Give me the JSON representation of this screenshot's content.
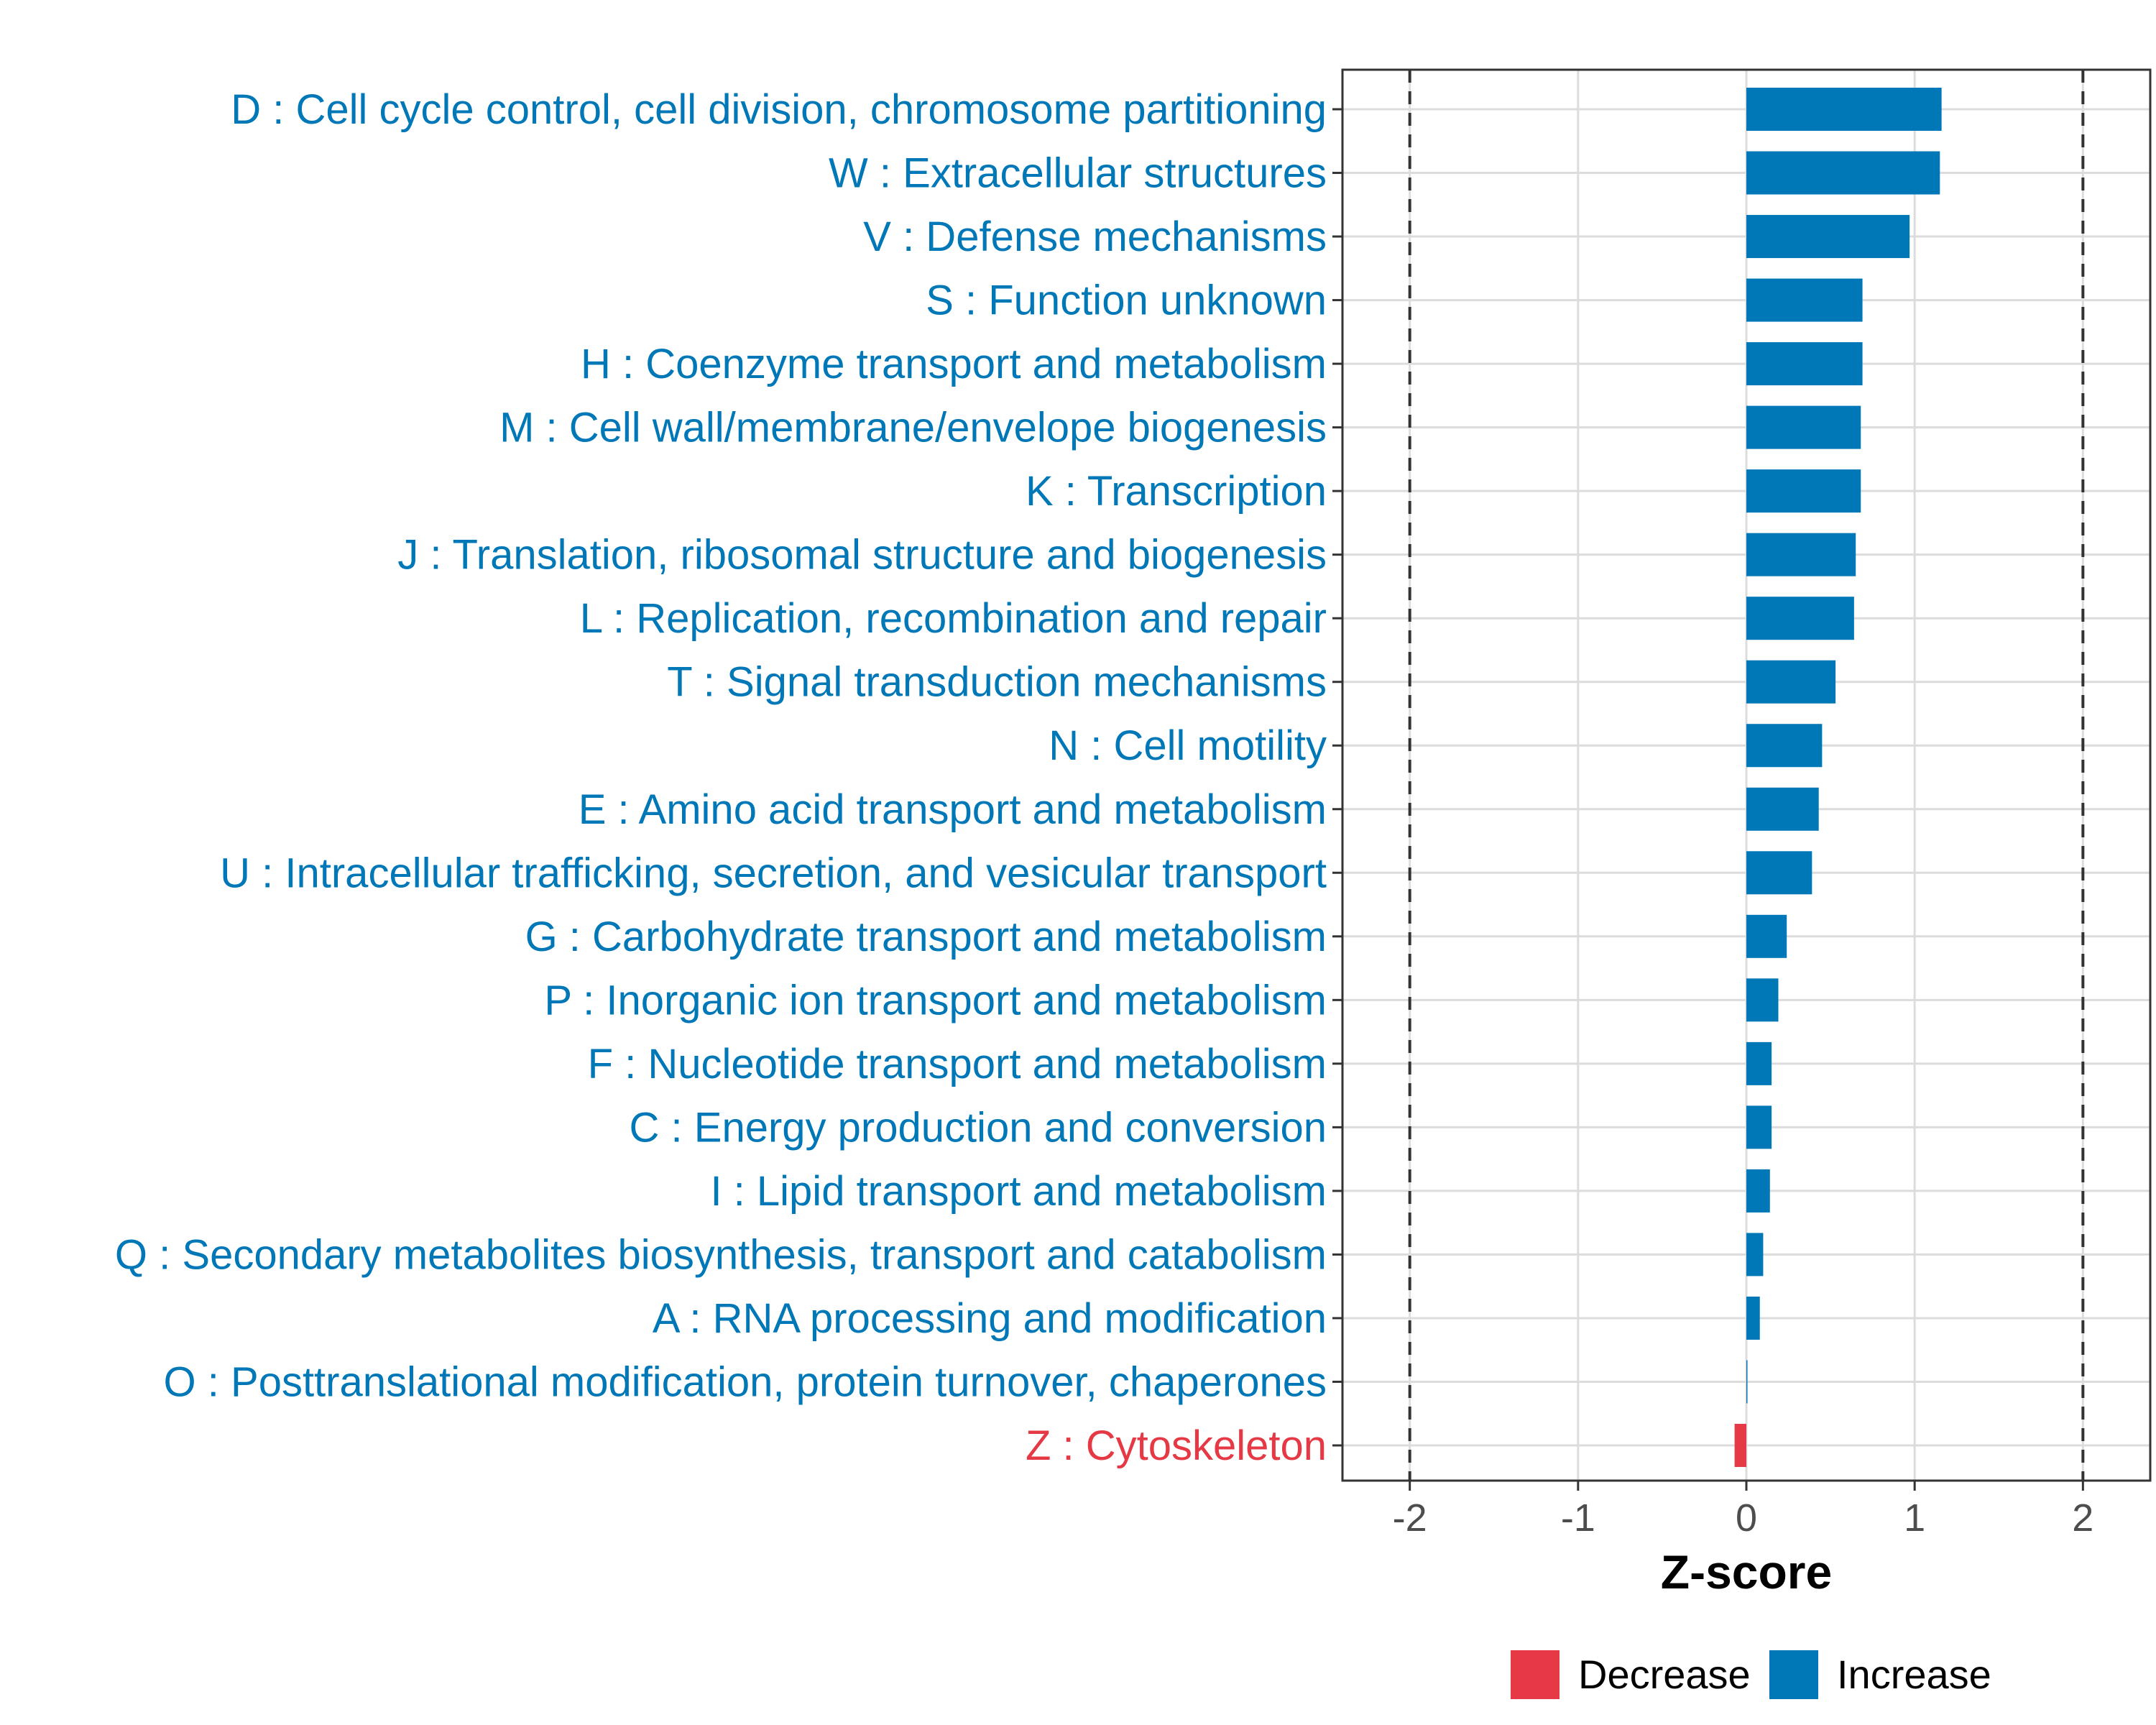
{
  "chart_data": {
    "type": "bar",
    "orientation": "horizontal",
    "xlabel": "Z-score",
    "xlim": [
      -2.4,
      2.4
    ],
    "xticks": [
      -2,
      -1,
      0,
      1,
      2
    ],
    "xtick_labels": [
      "-2",
      "-1",
      "0",
      "1",
      "2"
    ],
    "reference_lines": [
      -2,
      2
    ],
    "grid": true,
    "legend_position": "bottom",
    "legend": [
      {
        "label": "Decrease",
        "color": "#E63946"
      },
      {
        "label": "Increase",
        "color": "#0077B6"
      }
    ],
    "categories": [
      "D : Cell cycle control, cell division, chromosome partitioning",
      "W : Extracellular structures",
      "V : Defense mechanisms",
      "S : Function unknown",
      "H : Coenzyme transport and metabolism",
      "M : Cell wall/membrane/envelope biogenesis",
      "K : Transcription",
      "J : Translation, ribosomal structure and biogenesis",
      "L : Replication, recombination and repair",
      "T : Signal transduction mechanisms",
      "N : Cell motility",
      "E : Amino acid transport and metabolism",
      "U : Intracellular trafficking, secretion, and vesicular transport",
      "G : Carbohydrate transport and metabolism",
      "P : Inorganic ion transport and metabolism",
      "F : Nucleotide transport and metabolism",
      "C : Energy production and conversion",
      "I : Lipid transport and metabolism",
      "Q : Secondary metabolites biosynthesis, transport and catabolism",
      "A : RNA processing and modification",
      "O : Posttranslational modification, protein turnover, chaperones",
      "Z : Cytoskeleton"
    ],
    "values": [
      1.16,
      1.15,
      0.97,
      0.69,
      0.69,
      0.68,
      0.68,
      0.65,
      0.64,
      0.53,
      0.45,
      0.43,
      0.39,
      0.24,
      0.19,
      0.15,
      0.15,
      0.14,
      0.1,
      0.08,
      0.005,
      -0.07
    ],
    "directions": [
      "Increase",
      "Increase",
      "Increase",
      "Increase",
      "Increase",
      "Increase",
      "Increase",
      "Increase",
      "Increase",
      "Increase",
      "Increase",
      "Increase",
      "Increase",
      "Increase",
      "Increase",
      "Increase",
      "Increase",
      "Increase",
      "Increase",
      "Increase",
      "Increase",
      "Decrease"
    ]
  }
}
